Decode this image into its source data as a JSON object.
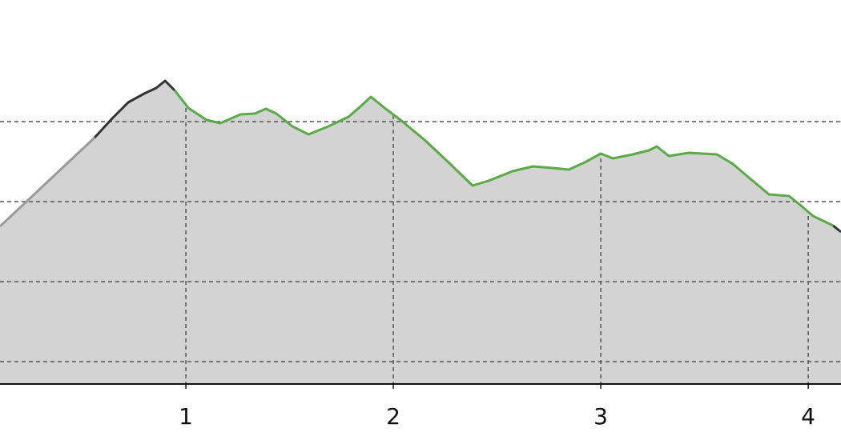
{
  "chart_data": {
    "type": "area",
    "x": [
      0.104,
      0.56,
      0.645,
      0.722,
      0.799,
      0.857,
      0.9,
      0.946,
      1.012,
      1.1,
      1.166,
      1.263,
      1.332,
      1.386,
      1.436,
      1.514,
      1.591,
      1.687,
      1.784,
      1.842,
      1.892,
      1.958,
      2.035,
      2.151,
      2.266,
      2.382,
      2.459,
      2.575,
      2.672,
      2.768,
      2.846,
      2.923,
      3,
      3.058,
      3.154,
      3.232,
      3.27,
      3.328,
      3.425,
      3.56,
      3.637,
      3.714,
      3.811,
      3.907,
      3.965,
      4.023,
      4.12,
      4.158
    ],
    "series": [
      {
        "color": "#9a9a9a",
        "values": [
          269,
          380,
          null,
          null,
          null,
          null,
          null,
          null,
          null,
          null,
          null,
          null,
          null,
          null,
          null,
          null,
          null,
          null,
          null,
          null,
          null,
          null,
          null,
          null,
          null,
          null,
          null,
          null,
          null,
          null,
          null,
          null,
          null,
          null,
          null,
          null,
          null,
          null,
          null,
          null,
          null,
          null,
          null,
          null,
          null,
          null,
          null,
          null
        ]
      },
      {
        "color": "#333333",
        "values": [
          null,
          380,
          404,
          424,
          435,
          442,
          451,
          439,
          null,
          null,
          null,
          null,
          null,
          null,
          null,
          null,
          null,
          null,
          null,
          null,
          null,
          null,
          null,
          null,
          null,
          null,
          null,
          null,
          null,
          null,
          null,
          null,
          null,
          null,
          null,
          null,
          null,
          null,
          null,
          null,
          null,
          null,
          null,
          null,
          null,
          null,
          270,
          262
        ]
      },
      {
        "color": "#5aaa46",
        "values": [
          null,
          null,
          null,
          null,
          null,
          null,
          null,
          439,
          417,
          402,
          398,
          409,
          410,
          416,
          410,
          394,
          384,
          394,
          406,
          419,
          431,
          417,
          402,
          377,
          349,
          320,
          326,
          338,
          344,
          342,
          340,
          349,
          360,
          354,
          359,
          364,
          369,
          357,
          361,
          359,
          347,
          330,
          309,
          307,
          295,
          282,
          270,
          null
        ]
      }
    ],
    "area_color": "#d3d3d3",
    "xlim": [
      0.104,
      4.158
    ],
    "xticks": [
      1,
      2,
      3,
      4
    ],
    "ylim": [
      72,
      552
    ],
    "ygrid": [
      100,
      200,
      300,
      400
    ],
    "grid": true
  }
}
